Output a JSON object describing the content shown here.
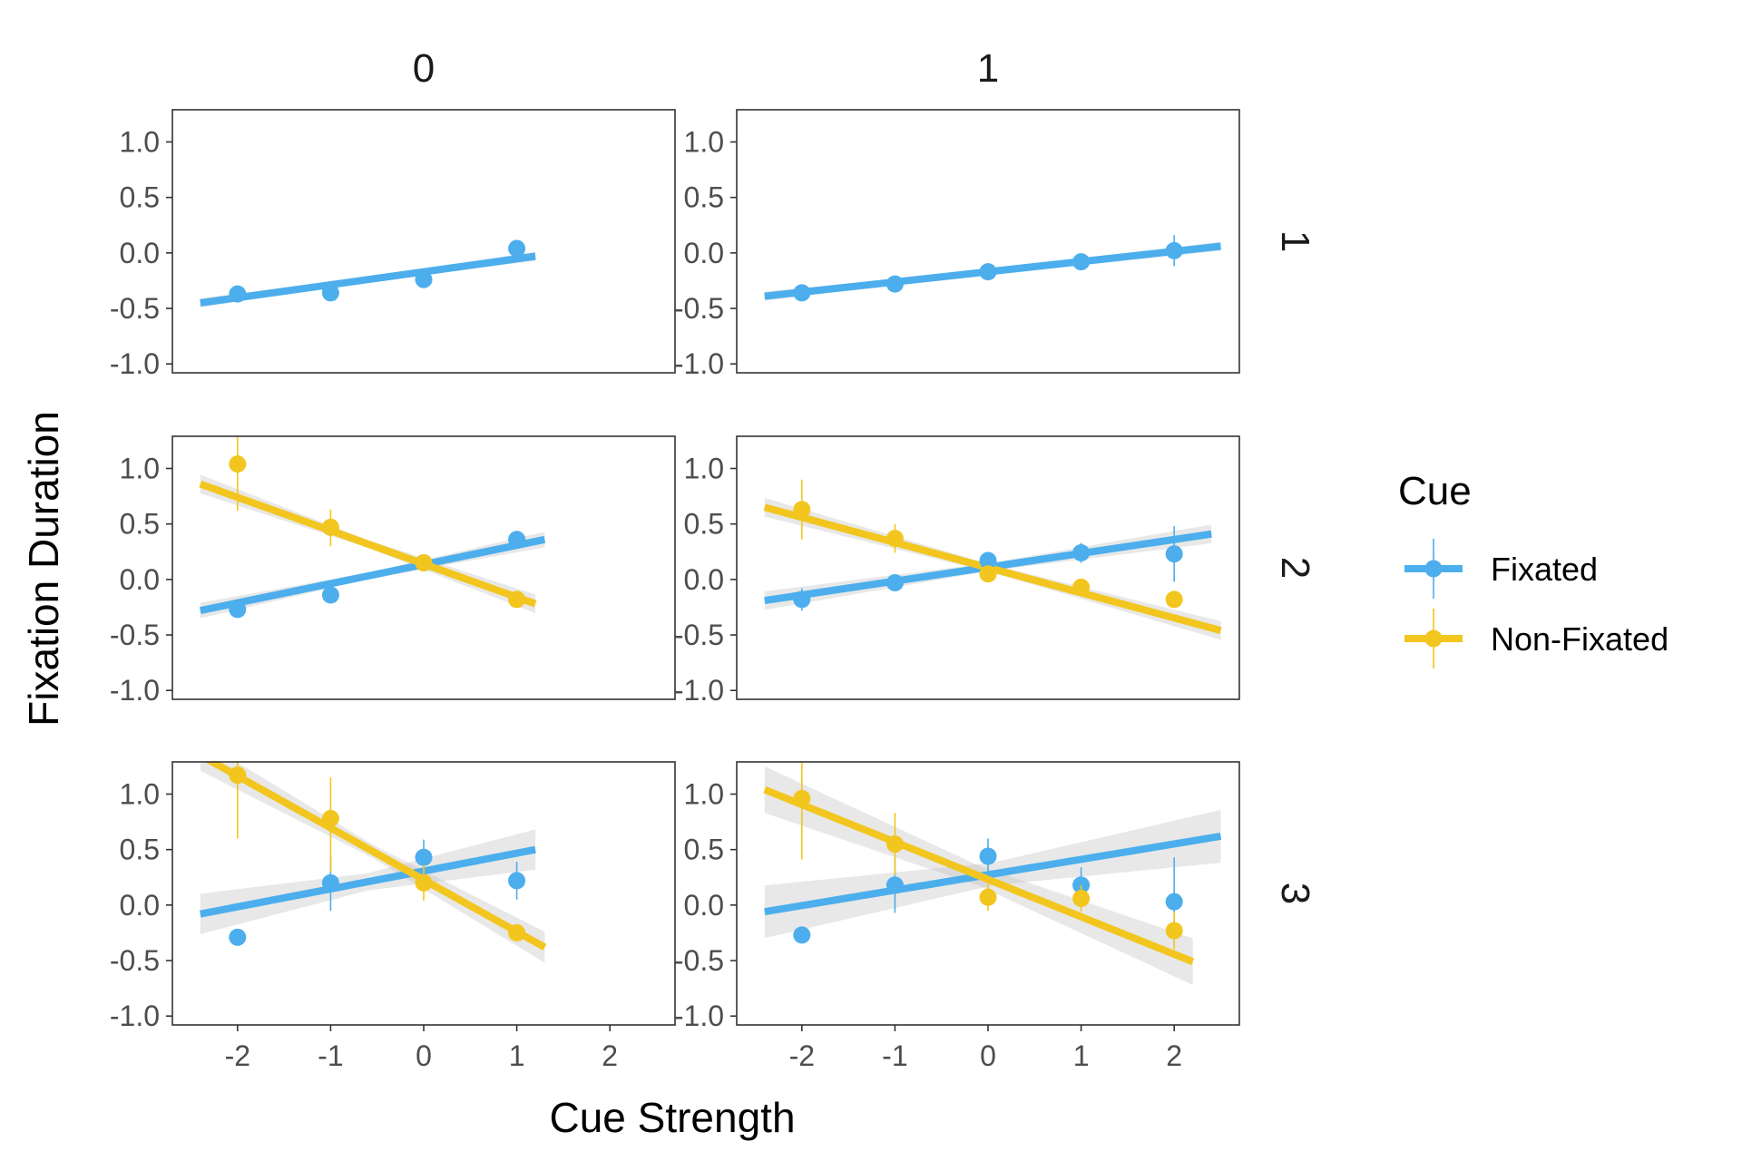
{
  "chart_data": {
    "type": "scatter",
    "xlabel": "Cue Strength",
    "ylabel": "Fixation Duration",
    "xlim": [
      -2.7,
      2.7
    ],
    "ylim": [
      -1.08,
      1.29
    ],
    "x_ticks": [
      -2,
      -1,
      0,
      1,
      2
    ],
    "x_tick_labels": [
      "-2",
      "-1",
      "0",
      "1",
      "2"
    ],
    "y_ticks": [
      1.0,
      0.5,
      0.0,
      -0.5,
      -1.0
    ],
    "y_tick_labels": [
      "1.0",
      "0.5",
      "0.0",
      "-0.5",
      "-1.0"
    ],
    "grid": false,
    "legend": {
      "title": "Cue",
      "position": "right",
      "entries": [
        {
          "name": "Fixated",
          "color": "#4CAEEC"
        },
        {
          "name": "Non-Fixated",
          "color": "#F2C61F"
        }
      ]
    },
    "facets": [
      {
        "col": "0",
        "row": "1",
        "series": [
          {
            "name": "Fixated",
            "points": [
              {
                "x": -2,
                "y": -0.37,
                "lo": -0.41,
                "hi": -0.33
              },
              {
                "x": -1,
                "y": -0.36,
                "lo": -0.4,
                "hi": -0.32
              },
              {
                "x": 0,
                "y": -0.24,
                "lo": -0.28,
                "hi": -0.2
              },
              {
                "x": 1,
                "y": 0.04,
                "lo": 0.0,
                "hi": 0.08
              }
            ],
            "fit": {
              "x": [
                -2.4,
                1.2
              ],
              "y": [
                -0.45,
                -0.03
              ],
              "band": 0.03
            }
          }
        ]
      },
      {
        "col": "1",
        "row": "1",
        "series": [
          {
            "name": "Fixated",
            "points": [
              {
                "x": -2,
                "y": -0.36,
                "lo": -0.4,
                "hi": -0.32
              },
              {
                "x": -1,
                "y": -0.28,
                "lo": -0.32,
                "hi": -0.24
              },
              {
                "x": 0,
                "y": -0.17,
                "lo": -0.21,
                "hi": -0.13
              },
              {
                "x": 1,
                "y": -0.08,
                "lo": -0.12,
                "hi": -0.04
              },
              {
                "x": 2,
                "y": 0.02,
                "lo": -0.12,
                "hi": 0.16
              }
            ],
            "fit": {
              "x": [
                -2.4,
                2.5
              ],
              "y": [
                -0.39,
                0.06
              ],
              "band": 0.03
            }
          }
        ]
      },
      {
        "col": "0",
        "row": "2",
        "series": [
          {
            "name": "Fixated",
            "points": [
              {
                "x": -2,
                "y": -0.27,
                "lo": -0.31,
                "hi": -0.23
              },
              {
                "x": -1,
                "y": -0.14,
                "lo": -0.18,
                "hi": -0.1
              },
              {
                "x": 0,
                "y": 0.15,
                "lo": 0.11,
                "hi": 0.19
              },
              {
                "x": 1,
                "y": 0.36,
                "lo": 0.29,
                "hi": 0.43
              }
            ],
            "fit": {
              "x": [
                -2.4,
                1.3
              ],
              "y": [
                -0.28,
                0.36
              ],
              "band": 0.05
            }
          },
          {
            "name": "Non-Fixated",
            "points": [
              {
                "x": -2,
                "y": 1.04,
                "lo": 0.62,
                "hi": 1.3
              },
              {
                "x": -1,
                "y": 0.47,
                "lo": 0.3,
                "hi": 0.63
              },
              {
                "x": 0,
                "y": 0.15,
                "lo": 0.09,
                "hi": 0.21
              },
              {
                "x": 1,
                "y": -0.18,
                "lo": -0.23,
                "hi": -0.13
              }
            ],
            "fit": {
              "x": [
                -2.4,
                1.2
              ],
              "y": [
                0.86,
                -0.22
              ],
              "band": 0.06
            }
          }
        ]
      },
      {
        "col": "1",
        "row": "2",
        "series": [
          {
            "name": "Fixated",
            "points": [
              {
                "x": -2,
                "y": -0.18,
                "lo": -0.28,
                "hi": -0.08
              },
              {
                "x": -1,
                "y": -0.03,
                "lo": -0.07,
                "hi": 0.01
              },
              {
                "x": 0,
                "y": 0.17,
                "lo": 0.13,
                "hi": 0.21
              },
              {
                "x": 1,
                "y": 0.24,
                "lo": 0.15,
                "hi": 0.33
              },
              {
                "x": 2,
                "y": 0.23,
                "lo": -0.02,
                "hi": 0.48
              }
            ],
            "fit": {
              "x": [
                -2.4,
                2.4
              ],
              "y": [
                -0.19,
                0.41
              ],
              "band": 0.06
            }
          },
          {
            "name": "Non-Fixated",
            "points": [
              {
                "x": -2,
                "y": 0.63,
                "lo": 0.36,
                "hi": 0.9
              },
              {
                "x": -1,
                "y": 0.37,
                "lo": 0.24,
                "hi": 0.5
              },
              {
                "x": 0,
                "y": 0.05,
                "lo": 0.01,
                "hi": 0.09
              },
              {
                "x": 1,
                "y": -0.07,
                "lo": -0.11,
                "hi": -0.03
              },
              {
                "x": 2,
                "y": -0.18,
                "lo": -0.22,
                "hi": -0.14
              }
            ],
            "fit": {
              "x": [
                -2.4,
                2.5
              ],
              "y": [
                0.65,
                -0.46
              ],
              "band": 0.06
            }
          }
        ]
      },
      {
        "col": "0",
        "row": "3",
        "series": [
          {
            "name": "Fixated",
            "points": [
              {
                "x": -2,
                "y": -0.29,
                "lo": -0.33,
                "hi": -0.25
              },
              {
                "x": -1,
                "y": 0.2,
                "lo": -0.05,
                "hi": 0.45
              },
              {
                "x": 0,
                "y": 0.43,
                "lo": 0.27,
                "hi": 0.59
              },
              {
                "x": 1,
                "y": 0.22,
                "lo": 0.05,
                "hi": 0.39
              }
            ],
            "fit": {
              "x": [
                -2.4,
                1.2
              ],
              "y": [
                -0.08,
                0.5
              ],
              "band": 0.13
            }
          },
          {
            "name": "Non-Fixated",
            "points": [
              {
                "x": -2,
                "y": 1.17,
                "lo": 0.6,
                "hi": 1.29
              },
              {
                "x": -1,
                "y": 0.78,
                "lo": 0.3,
                "hi": 1.15
              },
              {
                "x": 0,
                "y": 0.2,
                "lo": 0.04,
                "hi": 0.36
              },
              {
                "x": 1,
                "y": -0.25,
                "lo": -0.3,
                "hi": -0.2
              }
            ],
            "fit": {
              "x": [
                -2.4,
                1.3
              ],
              "y": [
                1.35,
                -0.38
              ],
              "band": 0.1
            }
          }
        ]
      },
      {
        "col": "1",
        "row": "3",
        "series": [
          {
            "name": "Fixated",
            "points": [
              {
                "x": -2,
                "y": -0.27,
                "lo": -0.31,
                "hi": -0.23
              },
              {
                "x": -1,
                "y": 0.18,
                "lo": -0.07,
                "hi": 0.43
              },
              {
                "x": 0,
                "y": 0.44,
                "lo": 0.28,
                "hi": 0.6
              },
              {
                "x": 1,
                "y": 0.18,
                "lo": 0.02,
                "hi": 0.34
              },
              {
                "x": 2,
                "y": 0.03,
                "lo": -0.37,
                "hi": 0.43
              }
            ],
            "fit": {
              "x": [
                -2.4,
                2.5
              ],
              "y": [
                -0.06,
                0.62
              ],
              "band": 0.17
            }
          },
          {
            "name": "Non-Fixated",
            "points": [
              {
                "x": -2,
                "y": 0.96,
                "lo": 0.41,
                "hi": 1.29
              },
              {
                "x": -1,
                "y": 0.55,
                "lo": 0.27,
                "hi": 0.83
              },
              {
                "x": 0,
                "y": 0.07,
                "lo": -0.05,
                "hi": 0.19
              },
              {
                "x": 1,
                "y": 0.06,
                "lo": -0.06,
                "hi": 0.18
              },
              {
                "x": 2,
                "y": -0.23,
                "lo": -0.4,
                "hi": -0.06
              }
            ],
            "fit": {
              "x": [
                -2.4,
                2.2
              ],
              "y": [
                1.04,
                -0.51
              ],
              "band": 0.15
            }
          }
        ]
      }
    ]
  }
}
